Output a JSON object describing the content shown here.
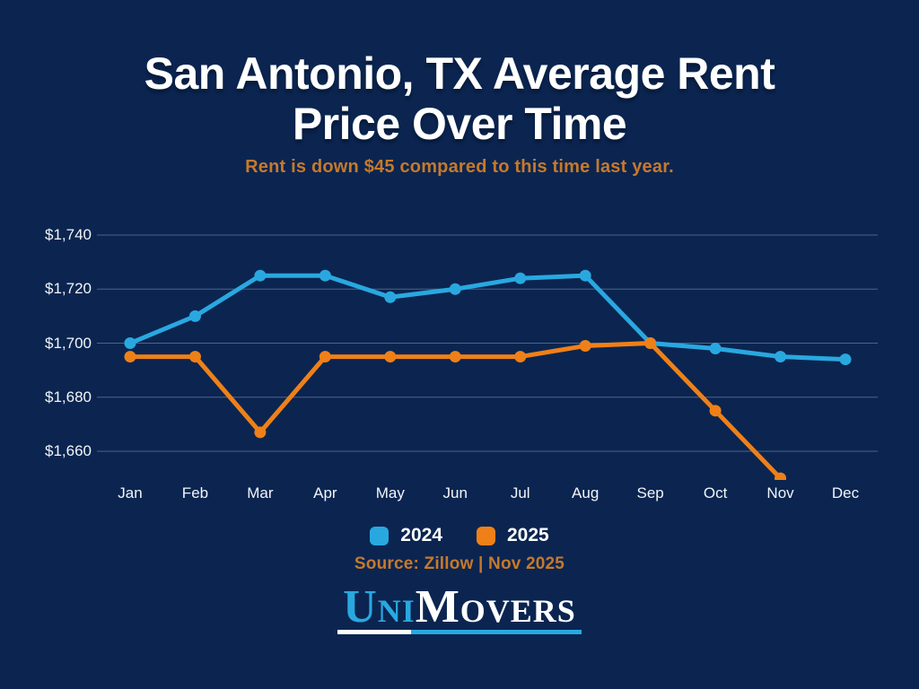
{
  "title": {
    "line1": "San Antonio, TX Average Rent",
    "line2": "Price Over Time"
  },
  "subtitle": "Rent is down $45 compared to this time last year.",
  "source": "Source: Zillow | Nov 2025",
  "logo": {
    "part1": "Uni",
    "part2": "Movers"
  },
  "colors": {
    "background": "#0b2550",
    "blue": "#29a8e0",
    "orange": "#ef8018",
    "accent_text": "#c7792b",
    "gridline": "rgba(190,205,226,0.38)",
    "axis_text": "#f2f5f9"
  },
  "chart_data": {
    "type": "line",
    "title": "San Antonio, TX Average Rent Price Over Time",
    "xlabel": "",
    "ylabel": "",
    "grid": true,
    "legend_position": "bottom",
    "ylim": [
      1650,
      1740
    ],
    "categories": [
      "Jan",
      "Feb",
      "Mar",
      "Apr",
      "May",
      "Jun",
      "Jul",
      "Aug",
      "Sep",
      "Oct",
      "Nov",
      "Dec"
    ],
    "ticks": [
      {
        "value": 1740,
        "label": "$1,740"
      },
      {
        "value": 1720,
        "label": "$1,720"
      },
      {
        "value": 1700,
        "label": "$1,700"
      },
      {
        "value": 1680,
        "label": "$1,680"
      },
      {
        "value": 1660,
        "label": "$1,660"
      }
    ],
    "series": [
      {
        "name": "2024",
        "color": "#29a8e0",
        "values": [
          1700,
          1710,
          1725,
          1725,
          1717,
          1720,
          1724,
          1725,
          1700,
          1698,
          1695,
          1694
        ]
      },
      {
        "name": "2025",
        "color": "#ef8018",
        "values": [
          1695,
          1695,
          1667,
          1695,
          1695,
          1695,
          1695,
          1699,
          1700,
          1675,
          1650,
          null
        ]
      }
    ]
  }
}
